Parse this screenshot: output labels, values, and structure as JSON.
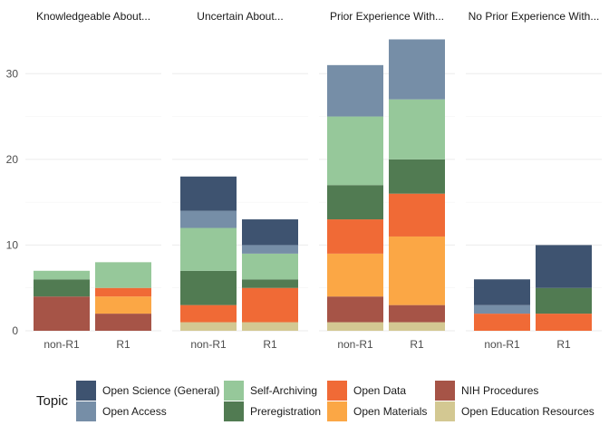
{
  "chart_data": {
    "type": "bar",
    "stacked": true,
    "facets": [
      "Knowledgeable About...",
      "Uncertain About...",
      "Prior Experience With...",
      "No Prior Experience With..."
    ],
    "categories": [
      "non-R1",
      "R1"
    ],
    "y_ticks": [
      0,
      10,
      20,
      30
    ],
    "ylim": [
      0,
      35
    ],
    "grid": true,
    "legend": {
      "title": "Topic",
      "position": "bottom",
      "order": [
        "Open Science (General)",
        "Open Access",
        "Self-Archiving",
        "Preregistration",
        "Open Data",
        "Open Materials",
        "NIH Procedures",
        "Open Education Resources"
      ]
    },
    "series": [
      {
        "name": "Open Science (General)",
        "color": "#3e5370",
        "values": [
          [
            0,
            0
          ],
          [
            4,
            3
          ],
          [
            0,
            0
          ],
          [
            3,
            5
          ]
        ]
      },
      {
        "name": "Open Access",
        "color": "#768ea7",
        "values": [
          [
            0,
            0
          ],
          [
            2,
            1
          ],
          [
            6,
            7
          ],
          [
            1,
            0
          ]
        ]
      },
      {
        "name": "Self-Archiving",
        "color": "#96c89a",
        "values": [
          [
            1,
            3
          ],
          [
            5,
            3
          ],
          [
            8,
            7
          ],
          [
            0,
            0
          ]
        ]
      },
      {
        "name": "Preregistration",
        "color": "#517b52",
        "values": [
          [
            2,
            0
          ],
          [
            4,
            1
          ],
          [
            4,
            4
          ],
          [
            0,
            3
          ]
        ]
      },
      {
        "name": "Open Data",
        "color": "#f06a36",
        "values": [
          [
            0,
            1
          ],
          [
            2,
            4
          ],
          [
            4,
            5
          ],
          [
            2,
            2
          ]
        ]
      },
      {
        "name": "Open Materials",
        "color": "#fba745",
        "values": [
          [
            0,
            2
          ],
          [
            0,
            0
          ],
          [
            5,
            8
          ],
          [
            0,
            0
          ]
        ]
      },
      {
        "name": "NIH Procedures",
        "color": "#a65447",
        "values": [
          [
            4,
            2
          ],
          [
            0,
            0
          ],
          [
            3,
            2
          ],
          [
            0,
            0
          ]
        ]
      },
      {
        "name": "Open Education Resources",
        "color": "#d3c892",
        "values": [
          [
            0,
            0
          ],
          [
            1,
            1
          ],
          [
            1,
            1
          ],
          [
            0,
            0
          ]
        ]
      }
    ]
  }
}
